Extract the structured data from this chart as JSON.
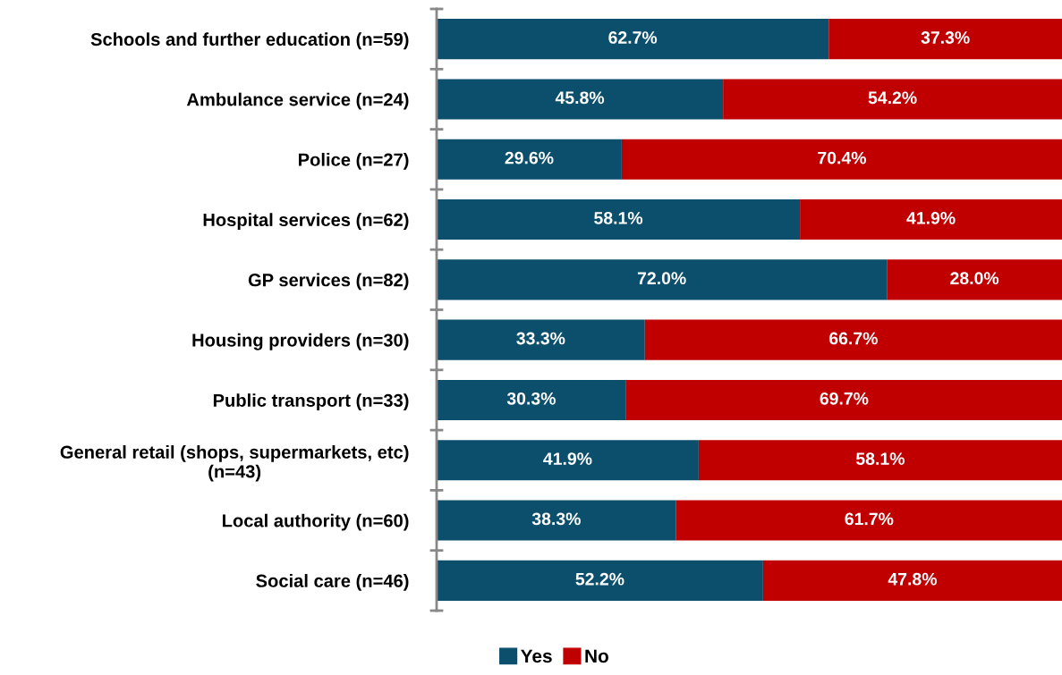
{
  "chart_data": {
    "type": "bar",
    "orientation": "horizontal",
    "stacked": true,
    "categories": [
      "Schools and further education (n=59)",
      "Ambulance service (n=24)",
      "Police (n=27)",
      "Hospital services (n=62)",
      "GP services (n=82)",
      "Housing providers (n=30)",
      "Public transport (n=33)",
      "General retail (shops, supermarkets, etc)\n(n=43)",
      "Local authority (n=60)",
      "Social care (n=46)"
    ],
    "series": [
      {
        "name": "Yes",
        "color": "#0b4f6c",
        "values": [
          62.7,
          45.8,
          29.6,
          58.1,
          72.0,
          33.3,
          30.3,
          41.9,
          38.3,
          52.2
        ],
        "value_labels": [
          "62.7%",
          "45.8%",
          "29.6%",
          "58.1%",
          "72.0%",
          "33.3%",
          "30.3%",
          "41.9%",
          "38.3%",
          "52.2%"
        ]
      },
      {
        "name": "No",
        "color": "#c00000",
        "values": [
          37.3,
          54.2,
          70.4,
          41.9,
          28.0,
          66.7,
          69.7,
          58.1,
          61.7,
          47.8
        ],
        "value_labels": [
          "37.3%",
          "54.2%",
          "70.4%",
          "41.9%",
          "28.0%",
          "66.7%",
          "69.7%",
          "58.1%",
          "61.7%",
          "47.8%"
        ]
      }
    ],
    "xlim": [
      0,
      100
    ],
    "tick_labels": "y",
    "grid": false,
    "legend": "bottom"
  }
}
